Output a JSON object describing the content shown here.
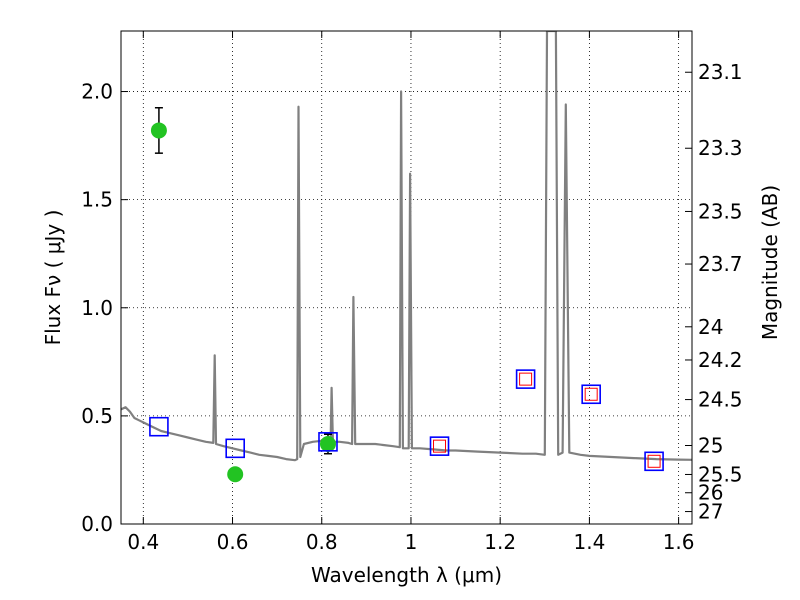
{
  "chart_data": {
    "type": "scatter",
    "xlabel": "Wavelength  λ (μm)",
    "ylabel": "Flux  Fν  ( μJy )",
    "y2label": "Magnitude (AB)",
    "xlim": [
      0.35,
      1.63
    ],
    "ylim": [
      0.0,
      2.28
    ],
    "x_ticks": [
      {
        "v": 0.4,
        "label": "0.4"
      },
      {
        "v": 0.6,
        "label": "0.6"
      },
      {
        "v": 0.8,
        "label": "0.8"
      },
      {
        "v": 1.0,
        "label": "1"
      },
      {
        "v": 1.2,
        "label": "1.2"
      },
      {
        "v": 1.4,
        "label": "1.4"
      },
      {
        "v": 1.6,
        "label": "1.6"
      }
    ],
    "y_ticks": [
      {
        "v": 0.0,
        "label": "0.0"
      },
      {
        "v": 0.5,
        "label": "0.5"
      },
      {
        "v": 1.0,
        "label": "1.0"
      },
      {
        "v": 1.5,
        "label": "1.5"
      },
      {
        "v": 2.0,
        "label": "2.0"
      }
    ],
    "mag_ticks": [
      {
        "v": 23.1,
        "label": "23.1"
      },
      {
        "v": 23.3,
        "label": "23.3"
      },
      {
        "v": 23.5,
        "label": "23.5"
      },
      {
        "v": 23.7,
        "label": "23.7"
      },
      {
        "v": 24.0,
        "label": "24"
      },
      {
        "v": 24.2,
        "label": "24.2"
      },
      {
        "v": 24.5,
        "label": "24.5"
      },
      {
        "v": 25.0,
        "label": "25"
      },
      {
        "v": 25.5,
        "label": "25.5"
      },
      {
        "v": 26.0,
        "label": "26"
      },
      {
        "v": 27.0,
        "label": "27"
      }
    ],
    "grid": true,
    "series": [
      {
        "kind": "line",
        "color": "#808080",
        "points": [
          [
            0.35,
            0.53
          ],
          [
            0.36,
            0.54
          ],
          [
            0.37,
            0.52
          ],
          [
            0.38,
            0.49
          ],
          [
            0.39,
            0.48
          ],
          [
            0.4,
            0.47
          ],
          [
            0.42,
            0.45
          ],
          [
            0.44,
            0.43
          ],
          [
            0.46,
            0.42
          ],
          [
            0.48,
            0.41
          ],
          [
            0.5,
            0.4
          ],
          [
            0.52,
            0.39
          ],
          [
            0.54,
            0.38
          ],
          [
            0.557,
            0.375
          ],
          [
            0.56,
            0.78
          ],
          [
            0.563,
            0.37
          ],
          [
            0.58,
            0.36
          ],
          [
            0.6,
            0.35
          ],
          [
            0.62,
            0.34
          ],
          [
            0.64,
            0.33
          ],
          [
            0.66,
            0.32
          ],
          [
            0.68,
            0.315
          ],
          [
            0.7,
            0.31
          ],
          [
            0.72,
            0.3
          ],
          [
            0.74,
            0.295
          ],
          [
            0.745,
            0.3
          ],
          [
            0.748,
            1.93
          ],
          [
            0.752,
            0.31
          ],
          [
            0.76,
            0.37
          ],
          [
            0.78,
            0.38
          ],
          [
            0.8,
            0.385
          ],
          [
            0.815,
            0.39
          ],
          [
            0.82,
            0.4
          ],
          [
            0.822,
            0.63
          ],
          [
            0.825,
            0.38
          ],
          [
            0.84,
            0.38
          ],
          [
            0.86,
            0.375
          ],
          [
            0.868,
            0.37
          ],
          [
            0.871,
            1.05
          ],
          [
            0.875,
            0.37
          ],
          [
            0.9,
            0.37
          ],
          [
            0.92,
            0.37
          ],
          [
            0.94,
            0.365
          ],
          [
            0.96,
            0.36
          ],
          [
            0.975,
            0.355
          ],
          [
            0.978,
            2.0
          ],
          [
            0.982,
            0.35
          ],
          [
            0.99,
            0.35
          ],
          [
            0.995,
            0.35
          ],
          [
            0.998,
            1.62
          ],
          [
            1.002,
            0.35
          ],
          [
            1.02,
            0.35
          ],
          [
            1.05,
            0.345
          ],
          [
            1.08,
            0.34
          ],
          [
            1.1,
            0.34
          ],
          [
            1.15,
            0.335
          ],
          [
            1.2,
            0.33
          ],
          [
            1.25,
            0.325
          ],
          [
            1.28,
            0.325
          ],
          [
            1.3,
            0.32
          ],
          [
            1.305,
            2.28
          ],
          [
            1.325,
            2.28
          ],
          [
            1.33,
            0.32
          ],
          [
            1.34,
            0.33
          ],
          [
            1.347,
            1.94
          ],
          [
            1.355,
            0.33
          ],
          [
            1.38,
            0.32
          ],
          [
            1.4,
            0.315
          ],
          [
            1.45,
            0.31
          ],
          [
            1.5,
            0.305
          ],
          [
            1.55,
            0.3
          ],
          [
            1.6,
            0.298
          ],
          [
            1.63,
            0.297
          ]
        ]
      },
      {
        "kind": "points",
        "marker": "circle",
        "color": "#22c322",
        "points": [
          {
            "x": 0.435,
            "y": 1.82,
            "err": 0.105
          },
          {
            "x": 0.606,
            "y": 0.23,
            "err": 0.02
          },
          {
            "x": 0.814,
            "y": 0.37,
            "err": 0.045
          }
        ]
      },
      {
        "kind": "points",
        "marker": "square",
        "color": "#0000ff",
        "points": [
          {
            "x": 0.435,
            "y": 0.45
          },
          {
            "x": 0.606,
            "y": 0.35
          },
          {
            "x": 0.814,
            "y": 0.38
          },
          {
            "x": 1.064,
            "y": 0.36
          },
          {
            "x": 1.257,
            "y": 0.67
          },
          {
            "x": 1.404,
            "y": 0.6
          },
          {
            "x": 1.545,
            "y": 0.29
          }
        ]
      },
      {
        "kind": "points",
        "marker": "small-square",
        "color": "#ff0000",
        "points": [
          {
            "x": 1.064,
            "y": 0.36
          },
          {
            "x": 1.257,
            "y": 0.67
          },
          {
            "x": 1.404,
            "y": 0.6
          },
          {
            "x": 1.545,
            "y": 0.29
          }
        ]
      }
    ]
  }
}
